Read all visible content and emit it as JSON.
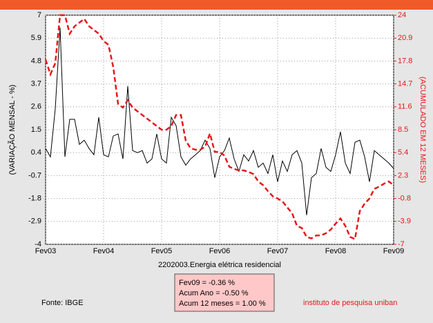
{
  "chart_data": {
    "type": "line",
    "ylabel": "(VARIAÇÃO MENSAL - %)",
    "y2label": "(ACUMULADO EM 12 MESES)",
    "xlabel": "2202003.Energia elétrica residencial",
    "categories": [
      "Fev03",
      null,
      null,
      null,
      null,
      null,
      null,
      null,
      null,
      null,
      null,
      null,
      "Fev04",
      null,
      null,
      null,
      null,
      null,
      null,
      null,
      null,
      null,
      null,
      null,
      "Fev05",
      null,
      null,
      null,
      null,
      null,
      null,
      null,
      null,
      null,
      null,
      null,
      "Fev06",
      null,
      null,
      null,
      null,
      null,
      null,
      null,
      null,
      null,
      null,
      null,
      "Fev07",
      null,
      null,
      null,
      null,
      null,
      null,
      null,
      null,
      null,
      null,
      null,
      "Fev08",
      null,
      null,
      null,
      null,
      null,
      null,
      null,
      null,
      null,
      null,
      null,
      "Fev09"
    ],
    "ylim": [
      -4,
      7
    ],
    "yticks": [
      -4,
      -2.9,
      -1.8,
      -0.7,
      0.4,
      1.5,
      2.6,
      3.7,
      4.8,
      5.9,
      7
    ],
    "y2lim": [
      -7,
      24
    ],
    "y2ticks": [
      -7,
      -3.9,
      -0.8,
      2.3,
      5.4,
      8.5,
      11.6,
      14.7,
      17.8,
      20.9,
      24
    ],
    "grid": true,
    "series": [
      {
        "color": "#000000",
        "values": [
          0.6,
          0.2,
          2.5,
          6.4,
          0.2,
          2.0,
          2.0,
          0.8,
          1.0,
          0.6,
          0.3,
          2.1,
          0.3,
          0.2,
          1.2,
          1.3,
          0.1,
          3.6,
          0.5,
          0.4,
          0.5,
          -0.1,
          0.1,
          1.3,
          0.1,
          -0.1,
          2.1,
          1.7,
          0.2,
          -0.2,
          0.1,
          0.3,
          0.5,
          1.0,
          0.6,
          -0.8,
          0.2,
          0.5,
          1.1,
          0.1,
          -0.5,
          0.3,
          0.0,
          0.5,
          -0.3,
          -0.1,
          -0.6,
          0.3,
          -1.0,
          0.0,
          -0.5,
          0.3,
          0.5,
          -0.1,
          -2.6,
          -0.8,
          -0.6,
          0.6,
          -0.3,
          -0.5,
          0.3,
          1.4,
          -0.1,
          -0.6,
          0.9,
          1.0,
          0.2,
          -1.0,
          0.5,
          0.3,
          0.1,
          -0.1,
          -0.36
        ]
      },
      {
        "color": "#e8141b",
        "axis": "y2",
        "values": [
          18,
          16,
          17.5,
          24,
          24,
          21.5,
          22.5,
          23,
          23.5,
          22.5,
          22,
          21.5,
          20.5,
          20,
          17,
          12,
          11.5,
          12.5,
          11.5,
          11,
          10.5,
          10,
          9.5,
          9,
          8.5,
          8.5,
          9,
          10.5,
          10.5,
          7,
          6,
          5.8,
          5.8,
          6.2,
          8,
          5.5,
          5.5,
          5,
          3.5,
          3.2,
          3,
          3,
          2.8,
          2.5,
          1.5,
          1,
          0.2,
          -0.5,
          -0.8,
          -1.2,
          -2,
          -2.8,
          -4.5,
          -4.8,
          -6,
          -6.2,
          -5.8,
          -5.8,
          -5.5,
          -5,
          -4.2,
          -3.5,
          -4.5,
          -6,
          -6.3,
          -2.5,
          -1.5,
          -0.8,
          0.5,
          0.8,
          1.2,
          1.5,
          1.0
        ]
      }
    ],
    "summary": [
      "Fev09 = -0.36 %",
      "Acum Ano = -0.50 %",
      "Acum 12 meses = 1.00 %"
    ],
    "source": "Fonte: IBGE",
    "credit": "instituto de pesquisa uniban"
  }
}
